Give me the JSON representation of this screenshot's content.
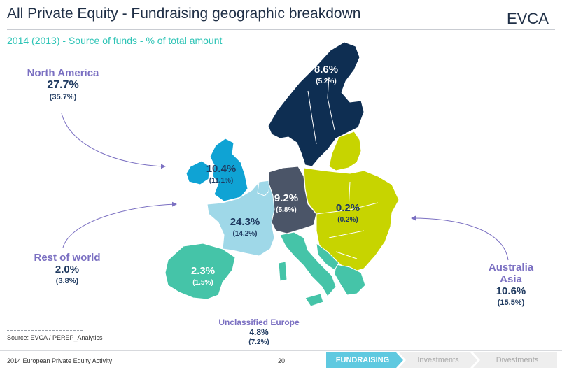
{
  "header": {
    "title": "All Private Equity - Fundraising geographic breakdown",
    "subtitle": "2014 (2013) - Source of funds - % of total amount",
    "logo_text": "EVCA"
  },
  "regions": {
    "north_america": {
      "name": "North America",
      "value_2014": "27.7%",
      "value_2013": "(35.7%)"
    },
    "rest_of_world": {
      "name": "Rest of world",
      "value_2014": "2.0%",
      "value_2013": "(3.8%)"
    },
    "australia_asia": {
      "name_line1": "Australia",
      "name_line2": "Asia",
      "value_2014": "10.6%",
      "value_2013": "(15.5%)"
    },
    "unclassified_europe": {
      "name": "Unclassified Europe",
      "value_2014": "4.8%",
      "value_2013": "(7.2%)"
    }
  },
  "map_regions": [
    {
      "id": "nordics",
      "value_2014": "8.6%",
      "value_2013": "(5.2%)",
      "color": "#0e2e52"
    },
    {
      "id": "uk_ireland",
      "value_2014": "10.4%",
      "value_2013": "(11.1%)",
      "color": "#0fa3d4"
    },
    {
      "id": "dach",
      "value_2014": "9.2%",
      "value_2013": "(5.8%)",
      "color": "#4b5568"
    },
    {
      "id": "france_benelux",
      "value_2014": "24.3%",
      "value_2013": "(14.2%)",
      "color": "#9fd8e8"
    },
    {
      "id": "cee",
      "value_2014": "0.2%",
      "value_2013": "(0.2%)",
      "color": "#c7d400"
    },
    {
      "id": "southern_europe",
      "value_2014": "2.3%",
      "value_2013": "(1.5%)",
      "color": "#45c4a8"
    }
  ],
  "colors": {
    "title": "#1f2f46",
    "subtitle": "#2ec4b6",
    "region_name": "#7b70c2",
    "values": "#1f3a60",
    "arrow": "#7b70c2",
    "tab_active": "#5fc9e0"
  },
  "footer": {
    "source": "Source: EVCA / PEREP_Analytics",
    "left": "2014 European Private Equity Activity",
    "page": "20",
    "tabs": [
      "FUNDRAISING",
      "Investments",
      "Divestments"
    ],
    "active_tab": "FUNDRAISING"
  }
}
